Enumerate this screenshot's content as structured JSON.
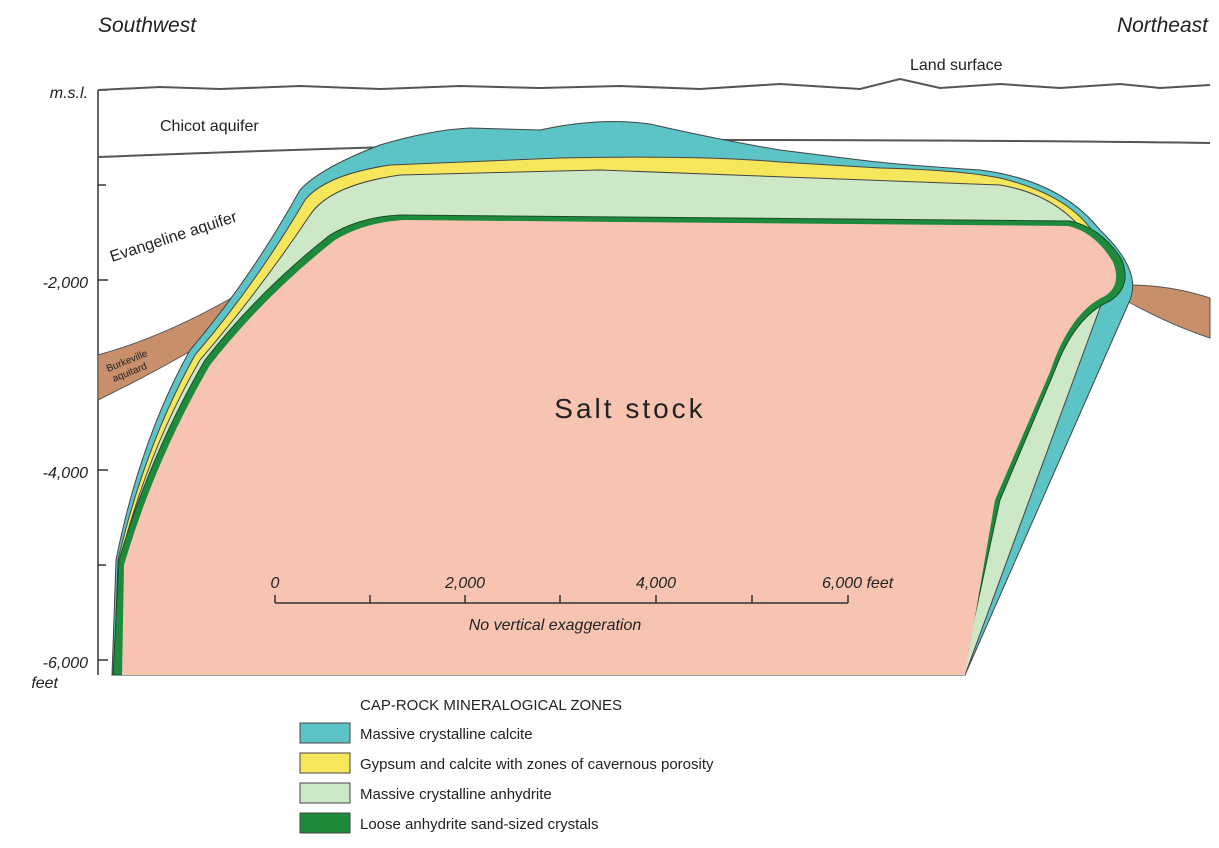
{
  "directions": {
    "left": "Southwest",
    "right": "Northeast"
  },
  "depth_axis": {
    "labels": [
      "m.s.l.",
      "-2,000",
      "-4,000",
      "-6,000"
    ],
    "unit": "feet"
  },
  "layers": {
    "land_surface": "Land surface",
    "chicot": "Chicot aquifer",
    "evangeline": "Evangeline aquifer",
    "burkeville": [
      "Burkeville",
      "aquitard"
    ],
    "salt": "Salt stock"
  },
  "scale_bar": {
    "labels": [
      "0",
      "2,000",
      "4,000",
      "6,000 feet"
    ],
    "note": "No vertical exaggeration"
  },
  "legend": {
    "title": "CAP-ROCK MINERALOGICAL ZONES",
    "items": [
      {
        "label": "Massive crystalline calcite",
        "color": "#5cc3c6"
      },
      {
        "label": "Gypsum and calcite with zones of cavernous porosity",
        "color": "#f6e65c"
      },
      {
        "label": "Massive crystalline anhydrite",
        "color": "#cde8c6"
      },
      {
        "label": "Loose anhydrite sand-sized crystals",
        "color": "#1e8a3c"
      }
    ]
  }
}
